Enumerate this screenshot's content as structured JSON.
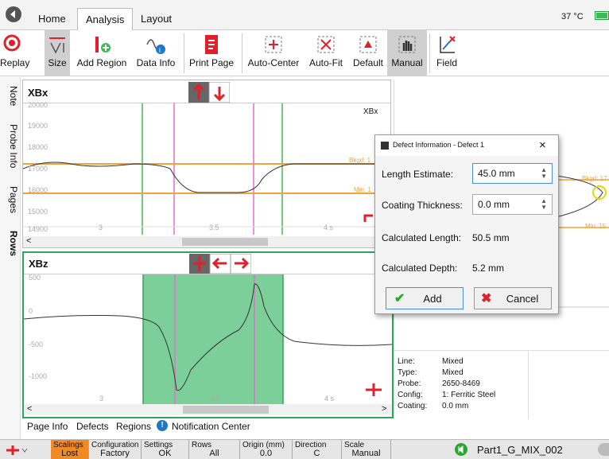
{
  "tabs": {
    "home": "Home",
    "analysis": "Analysis",
    "layout": "Layout",
    "temperature": "37 °C"
  },
  "ribbon": {
    "replay": "Replay",
    "size": "Size",
    "add_region": "Add Region",
    "data_info": "Data Info",
    "print_page": "Print Page",
    "auto_center": "Auto-Center",
    "auto_fit": "Auto-Fit",
    "default": "Default",
    "manual": "Manual",
    "field": "Field"
  },
  "side_tabs": [
    "Note",
    "Probe Info",
    "Pages",
    "Rows"
  ],
  "xbx": {
    "title": "XBx",
    "corner_label": "XBx",
    "y_ticks": [
      "20000",
      "19000",
      "18000",
      "17000",
      "16000",
      "15000",
      "14900"
    ],
    "x_ticks": [
      "3",
      "3.5",
      "4 s"
    ],
    "bkgd_label": "Bkgd: 1",
    "min_label": "Min: 1"
  },
  "xbz": {
    "title": "XBz",
    "y_ticks": [
      "500",
      "0",
      "-500",
      "-1000"
    ],
    "x_ticks": [
      "3",
      "3.5",
      "4 s"
    ]
  },
  "right_plot": {
    "bkgd_label": "Bkgd: 17",
    "min_label": "Min: 15"
  },
  "dialog": {
    "title": "Defect Information - Defect 1",
    "close": "×",
    "length_estimate_label": "Length Estimate:",
    "length_estimate_value": "45.0 mm",
    "coating_thickness_label": "Coating Thickness:",
    "coating_thickness_value": "0.0 mm",
    "calc_length_label": "Calculated Length:",
    "calc_length_value": "50.5 mm",
    "calc_depth_label": "Calculated Depth:",
    "calc_depth_value": "5.2 mm",
    "add_button": "Add",
    "cancel_button": "Cancel"
  },
  "probe_info": {
    "line_label": "Line:",
    "line_value": "Mixed",
    "type_label": "Type:",
    "type_value": "Mixed",
    "probe_label": "Probe:",
    "probe_value": "2650-8469",
    "config_label": "Config:",
    "config_value": "1: Ferritic Steel",
    "coating_label": "Coating:",
    "coating_value": "0.0 mm"
  },
  "subtabs": {
    "page_info": "Page Info",
    "defects": "Defects",
    "regions": "Regions",
    "notification_center": "Notification Center"
  },
  "status": {
    "scalings_label": "Scalings",
    "scalings_value": "Lost",
    "configuration_label": "Configuration",
    "configuration_value": "Factory",
    "settings_label": "Settings",
    "settings_value": "OK",
    "rows_label": "Rows",
    "rows_value": "All",
    "origin_label": "Origin (mm)",
    "origin_value": "0.0",
    "direction_label": "Direction",
    "direction_value": "C",
    "scale_label": "Scale",
    "scale_value": "Manual",
    "file_name": "Part1_G_MIX_002"
  },
  "colors": {
    "accent_red": "#e0202a",
    "green_region": "#7ccf98",
    "green_border": "#2ea55a",
    "orange_line": "#f2a23a",
    "pink_marker": "#e070d0",
    "status_orange": "#f08a24",
    "add_check": "#2aa530"
  }
}
